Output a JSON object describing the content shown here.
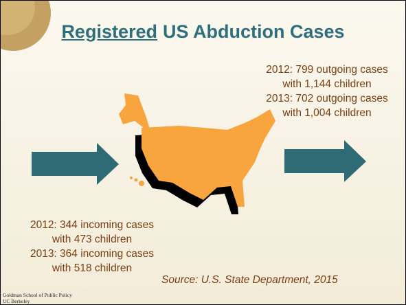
{
  "title": {
    "underlined": "Registered",
    "rest": "US Abduction Cases"
  },
  "outgoing": [
    "2012: 799 outgoing cases",
    "with 1,144 children",
    "2013: 702 outgoing cases",
    "with 1,004 children"
  ],
  "incoming": [
    "2012: 344  incoming cases",
    "with 473 children",
    "2013: 364 incoming cases",
    "with 518 children"
  ],
  "source": "Source: U.S. State Department, 2015",
  "footer": [
    "Goldman School of Public Policy",
    "UC Berkeley"
  ]
}
